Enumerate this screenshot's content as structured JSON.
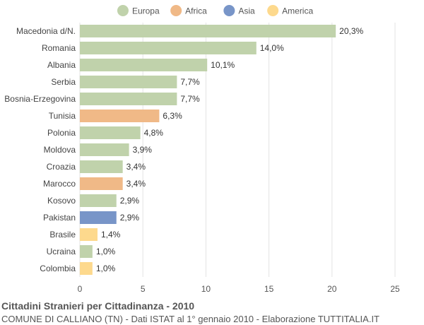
{
  "chart_data": {
    "type": "bar",
    "orientation": "horizontal",
    "categories": [
      "Macedonia d/N.",
      "Romania",
      "Albania",
      "Serbia",
      "Bosnia-Erzegovina",
      "Tunisia",
      "Polonia",
      "Moldova",
      "Croazia",
      "Marocco",
      "Kosovo",
      "Pakistan",
      "Brasile",
      "Ucraina",
      "Colombia"
    ],
    "values": [
      20.3,
      14.0,
      10.1,
      7.7,
      7.7,
      6.3,
      4.8,
      3.9,
      3.4,
      3.4,
      2.9,
      2.9,
      1.4,
      1.0,
      1.0
    ],
    "value_labels": [
      "20,3%",
      "14,0%",
      "10,1%",
      "7,7%",
      "7,7%",
      "6,3%",
      "4,8%",
      "3,9%",
      "3,4%",
      "3,4%",
      "2,9%",
      "2,9%",
      "1,4%",
      "1,0%",
      "1,0%"
    ],
    "groups": [
      "Europa",
      "Europa",
      "Europa",
      "Europa",
      "Europa",
      "Africa",
      "Europa",
      "Europa",
      "Europa",
      "Africa",
      "Europa",
      "Asia",
      "America",
      "Europa",
      "America"
    ],
    "legend": [
      {
        "name": "Europa",
        "color": "#c0d2ab"
      },
      {
        "name": "Africa",
        "color": "#f0b987"
      },
      {
        "name": "Asia",
        "color": "#7895c8"
      },
      {
        "name": "America",
        "color": "#fdd98d"
      }
    ],
    "legend_position": "top",
    "xlim": [
      0,
      25
    ],
    "xticks": [
      0,
      5,
      10,
      15,
      20,
      25
    ],
    "grid": true,
    "title": "Cittadini Stranieri per Cittadinanza - 2010",
    "subtitle": "COMUNE DI CALLIANO (TN) - Dati ISTAT al 1° gennaio 2010 - Elaborazione TUTTITALIA.IT"
  }
}
